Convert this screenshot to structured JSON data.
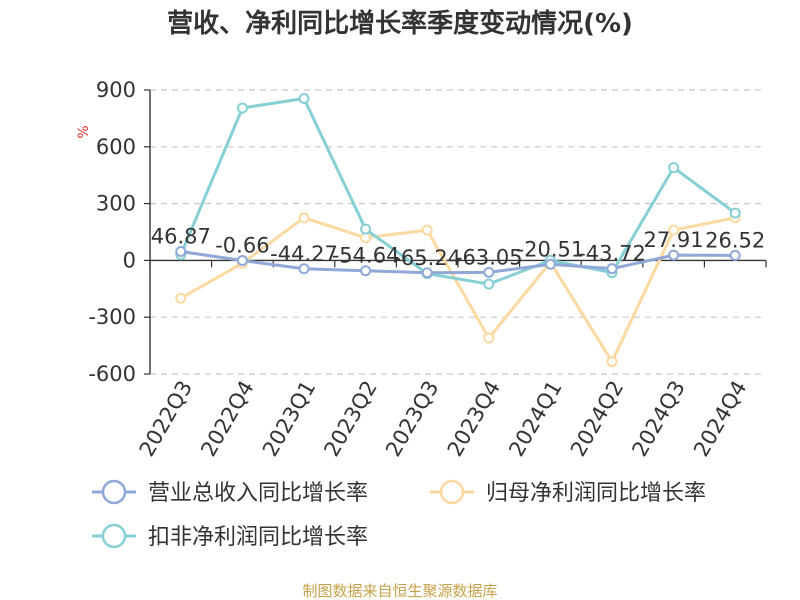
{
  "chart_data": {
    "type": "line",
    "title": "营收、净利同比增长率季度变动情况(%)",
    "ylabel": "%",
    "ylim": [
      -600,
      900
    ],
    "yticks": [
      900,
      600,
      300,
      0,
      -300,
      -600
    ],
    "grid": true,
    "legend_position": "bottom",
    "categories": [
      "2022Q3",
      "2022Q4",
      "2023Q1",
      "2023Q2",
      "2023Q3",
      "2023Q4",
      "2024Q1",
      "2024Q2",
      "2024Q3",
      "2024Q4"
    ],
    "series": [
      {
        "name": "营业总收入同比增长率",
        "color": "#8fa8d8",
        "values": [
          46.87,
          -0.66,
          -44.27,
          -54.64,
          -65.24,
          -63.05,
          -20.51,
          -43.72,
          27.91,
          26.52
        ],
        "labels": [
          "46.87",
          "-0.66",
          "-44.27",
          "-54.64",
          "-65.24",
          "-63.05",
          "-20.51",
          "-43.72",
          "27.91",
          "26.52"
        ]
      },
      {
        "name": "归母净利润同比增长率",
        "color": "#fbd9a0",
        "values": [
          -200,
          -15,
          225,
          120,
          160,
          -410,
          -10,
          -535,
          160,
          225
        ]
      },
      {
        "name": "扣非净利润同比增长率",
        "color": "#86d0d5",
        "values": [
          30,
          805,
          855,
          165,
          -70,
          -125,
          0,
          -65,
          490,
          250
        ]
      }
    ],
    "source": "制图数据来自恒生聚源数据库"
  }
}
